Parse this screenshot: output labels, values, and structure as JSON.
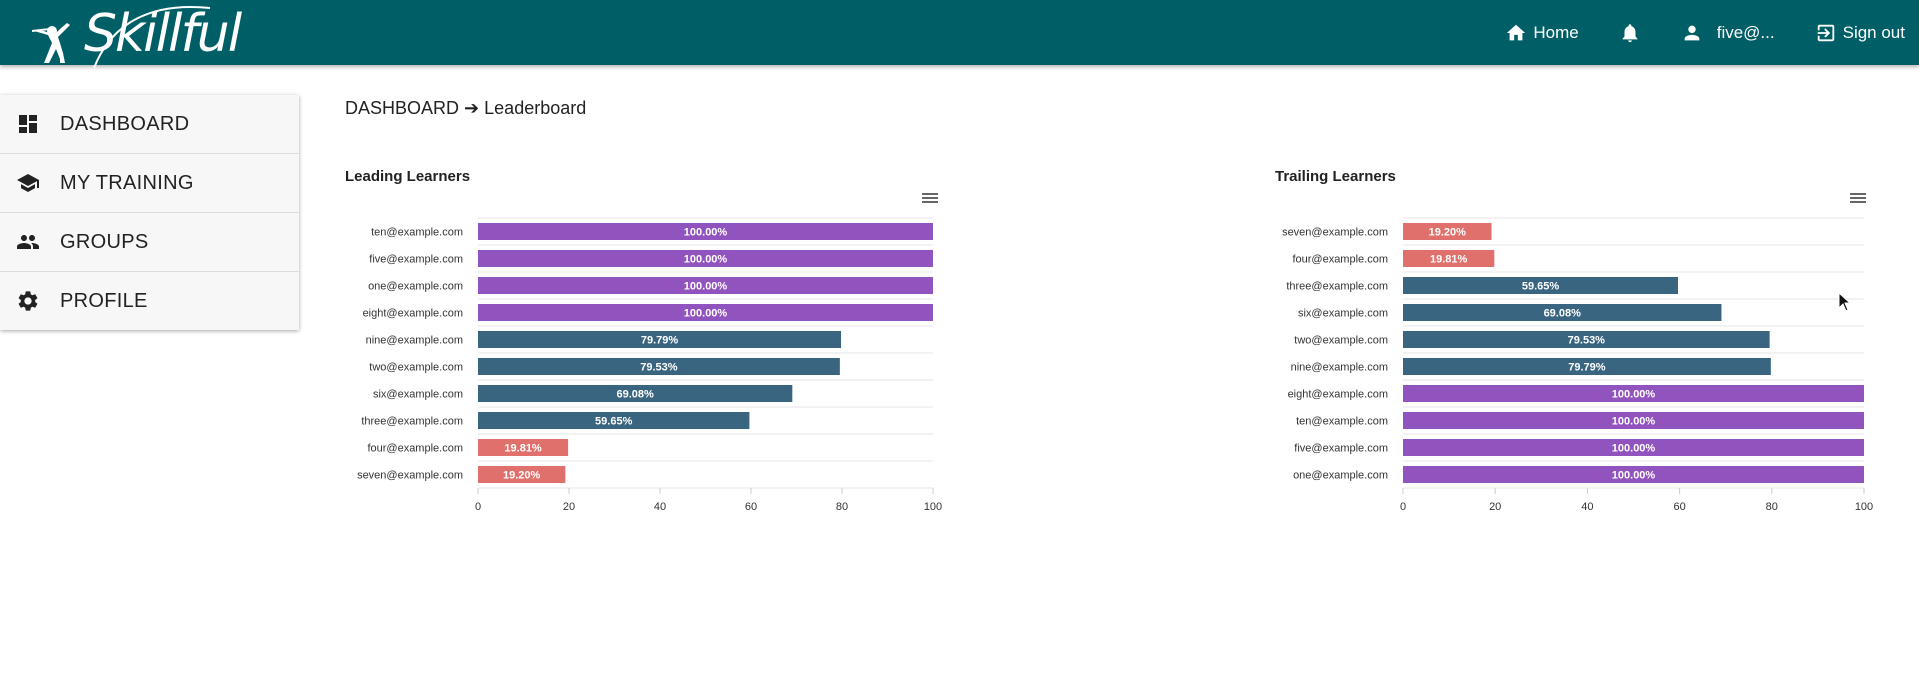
{
  "app": {
    "brand": "Skillful"
  },
  "nav": {
    "home": "Home",
    "user": "five@...",
    "signout": "Sign out"
  },
  "sidebar": {
    "items": [
      {
        "label": "DASHBOARD",
        "icon": "dashboard-icon"
      },
      {
        "label": "MY TRAINING",
        "icon": "graduation-cap-icon"
      },
      {
        "label": "GROUPS",
        "icon": "people-icon"
      },
      {
        "label": "PROFILE",
        "icon": "gear-icon"
      }
    ]
  },
  "breadcrumb": {
    "root": "DASHBOARD",
    "arrow": "➔",
    "current": "Leaderboard"
  },
  "colors": {
    "header": "#005f66",
    "high": "#9153be",
    "mid": "#3a6580",
    "low": "#e0706c"
  },
  "chart_data": [
    {
      "type": "bar",
      "orientation": "horizontal",
      "title": "Leading Learners",
      "categories": [
        "ten@example.com",
        "five@example.com",
        "one@example.com",
        "eight@example.com",
        "nine@example.com",
        "two@example.com",
        "six@example.com",
        "three@example.com",
        "four@example.com",
        "seven@example.com"
      ],
      "values": [
        100,
        100,
        100,
        100,
        79.79,
        79.53,
        69.08,
        59.65,
        19.81,
        19.2
      ],
      "labels": [
        "100.00%",
        "100.00%",
        "100.00%",
        "100.00%",
        "79.79%",
        "79.53%",
        "69.08%",
        "59.65%",
        "19.81%",
        "19.20%"
      ],
      "xlim": [
        0,
        100
      ],
      "xticks": [
        "0",
        "20",
        "40",
        "60",
        "80",
        "100"
      ]
    },
    {
      "type": "bar",
      "orientation": "horizontal",
      "title": "Trailing Learners",
      "categories": [
        "seven@example.com",
        "four@example.com",
        "three@example.com",
        "six@example.com",
        "two@example.com",
        "nine@example.com",
        "eight@example.com",
        "ten@example.com",
        "five@example.com",
        "one@example.com"
      ],
      "values": [
        19.2,
        19.81,
        59.65,
        69.08,
        79.53,
        79.79,
        100,
        100,
        100,
        100
      ],
      "labels": [
        "19.20%",
        "19.81%",
        "59.65%",
        "69.08%",
        "79.53%",
        "79.79%",
        "100.00%",
        "100.00%",
        "100.00%",
        "100.00%"
      ],
      "xlim": [
        0,
        100
      ],
      "xticks": [
        "0",
        "20",
        "40",
        "60",
        "80",
        "100"
      ]
    }
  ]
}
